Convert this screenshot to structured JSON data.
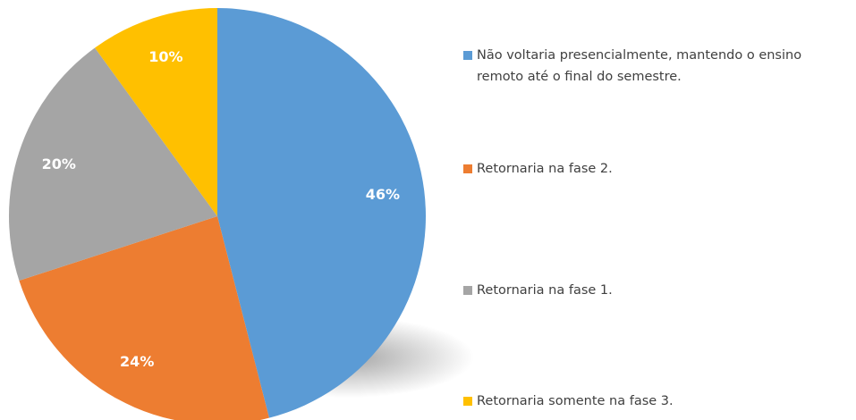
{
  "chart_data": {
    "type": "pie",
    "categories": [
      "Não voltaria presencialmente, mantendo o ensino remoto até o final do semestre.",
      "Retornaria na fase 2.",
      "Retornaria na fase 1.",
      "Retornaria somente na fase 3."
    ],
    "values": [
      46,
      24,
      20,
      10
    ],
    "value_labels": [
      "46%",
      "24%",
      "20%",
      "10%"
    ],
    "colors": [
      "#5b9bd5",
      "#ed7d31",
      "#a5a5a5",
      "#ffc000"
    ],
    "legend": "right"
  }
}
